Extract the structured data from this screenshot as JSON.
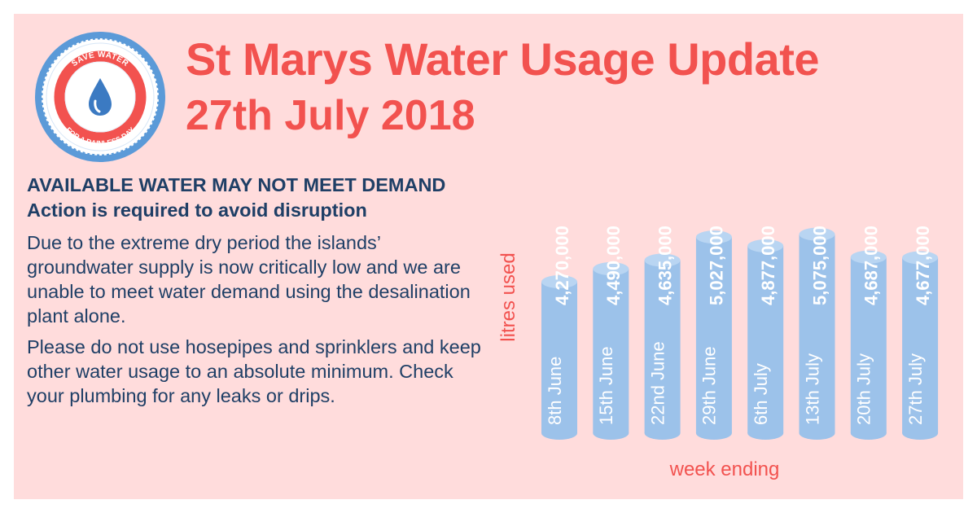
{
  "header": {
    "title": "St Marys Water Usage Update",
    "date": "27th July 2018"
  },
  "logo": {
    "top_text": "SAVE WATER",
    "bottom_text": "FOR A RAINLESS DAY"
  },
  "notice": {
    "heading": "AVAILABLE WATER MAY NOT MEET DEMAND Action is required to avoid disruption",
    "paragraph1": "Due to the extreme dry period the islands’ groundwater supply is now critically low and we are unable to meet water demand using the desalination plant alone.",
    "paragraph2": "Please do not use hosepipes and sprinklers and keep other water usage to an absolute minimum. Check your plumbing for any leaks or drips."
  },
  "colors": {
    "accent": "#f2524f",
    "text": "#1f3f66",
    "background": "#ffdcdc",
    "bar": "#9cc2ea",
    "bar_top": "#b9d5f2"
  },
  "chart_data": {
    "type": "bar",
    "categories": [
      "8th June",
      "15th June",
      "22nd June",
      "29th June",
      "6th July",
      "13th July",
      "20th July",
      "27th July"
    ],
    "values": [
      4270000,
      4490000,
      4635000,
      5027000,
      4877000,
      5075000,
      4687000,
      4677000
    ],
    "value_labels": [
      "4,270,000",
      "4,490,000",
      "4,635,000",
      "5,027,000",
      "4,877,000",
      "5,075,000",
      "4,687,000",
      "4,677,000"
    ],
    "xlabel": "week ending",
    "ylabel": "litres used",
    "bar_style": "cylinder"
  }
}
